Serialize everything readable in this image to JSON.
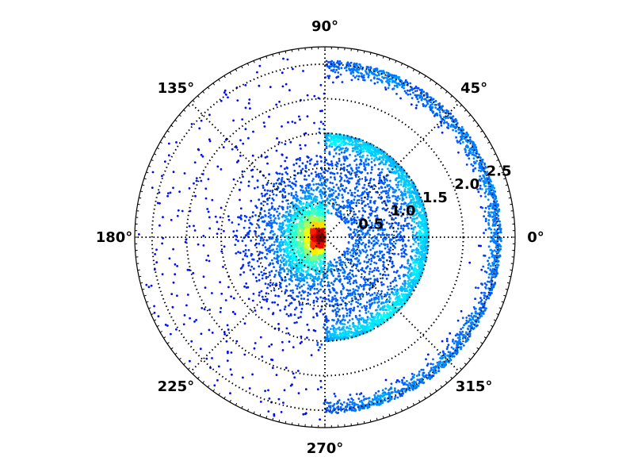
{
  "chart_data": {
    "type": "scatter",
    "subtype": "polar",
    "title": "",
    "angle_ticks": [
      {
        "deg": 0,
        "label": "0°"
      },
      {
        "deg": 45,
        "label": "45°"
      },
      {
        "deg": 90,
        "label": "90°"
      },
      {
        "deg": 135,
        "label": "135°"
      },
      {
        "deg": 180,
        "label": "180°"
      },
      {
        "deg": 225,
        "label": "225°"
      },
      {
        "deg": 270,
        "label": "270°"
      },
      {
        "deg": 315,
        "label": "315°"
      }
    ],
    "r_ticks": [
      {
        "r": 0.5,
        "label": "0.5"
      },
      {
        "r": 1.0,
        "label": "1.0"
      },
      {
        "r": 1.5,
        "label": "1.5"
      },
      {
        "r": 2.0,
        "label": "2.0"
      },
      {
        "r": 2.5,
        "label": "2.5"
      }
    ],
    "rlim": [
      0,
      2.75
    ],
    "grid": true,
    "grid_style": "dotted",
    "colormap": "jet",
    "color_encodes": "point density",
    "seed": 7,
    "groups": [
      {
        "theta_range_deg": [
          90,
          270
        ],
        "r_center": 0.0,
        "r_spread": 0.55,
        "r_max": 2.7,
        "count": 3200,
        "distribution": "gaussian"
      },
      {
        "theta_range_deg": [
          -90,
          90
        ],
        "r_center": 1.5,
        "r_spread": 0.08,
        "r_max": 1.5,
        "count": 1400,
        "distribution": "ring"
      },
      {
        "theta_range_deg": [
          -90,
          90
        ],
        "r_center": 0.0,
        "r_spread": 1.5,
        "r_max": 1.5,
        "count": 1700,
        "distribution": "disk-fill"
      },
      {
        "theta_range_deg": [
          -90,
          90
        ],
        "r_center": 2.55,
        "r_spread": 0.1,
        "r_max": 2.75,
        "count": 1600,
        "distribution": "ring"
      }
    ]
  }
}
